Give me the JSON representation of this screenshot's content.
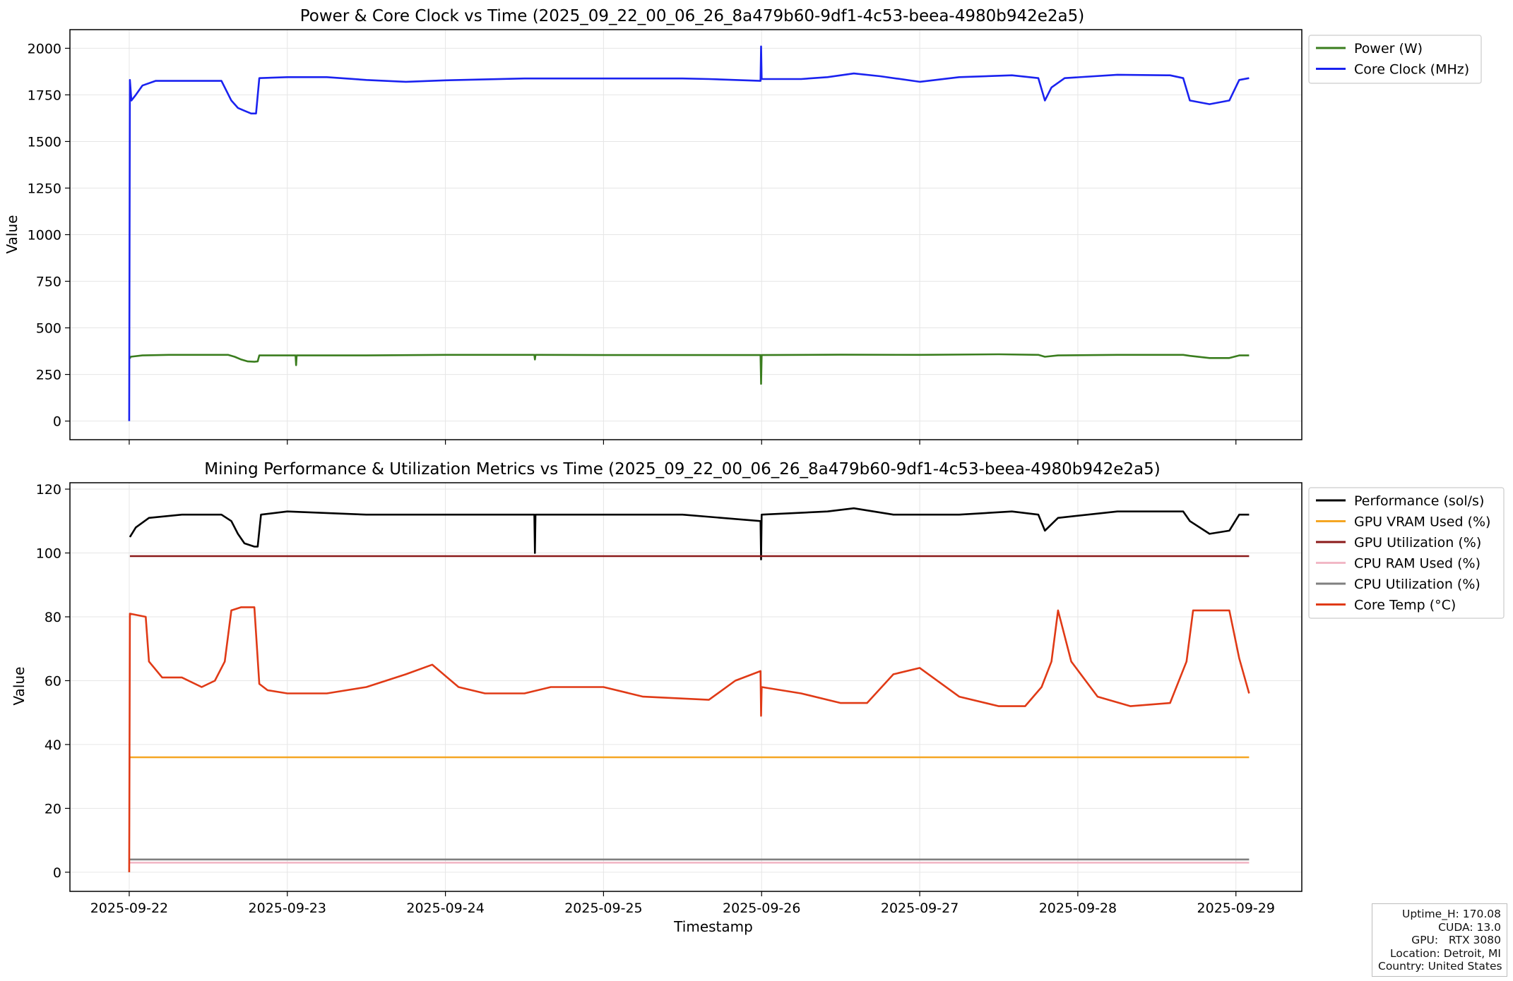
{
  "chart_data": [
    {
      "type": "line",
      "title": "Power & Core Clock vs Time (2025_09_22_00_06_26_8a479b60-9df1-4c53-beea-4980b942e2a5)",
      "xlabel": "",
      "ylabel": "Value",
      "xlim": [
        "2025-09-21T15:00",
        "2025-09-29T10:00"
      ],
      "ylim": [
        -100,
        2100
      ],
      "yticks": [
        0,
        250,
        500,
        750,
        1000,
        1250,
        1500,
        1750,
        2000
      ],
      "grid": true,
      "legend_position": "upper-right-outside",
      "series": [
        {
          "name": "Power (W)",
          "color": "#3a7d1e",
          "x": [
            "2025-09-22T00:06",
            "2025-09-22T00:12",
            "2025-09-22T02:00",
            "2025-09-22T06:00",
            "2025-09-22T12:00",
            "2025-09-22T15:00",
            "2025-09-22T16:00",
            "2025-09-22T17:00",
            "2025-09-22T18:00",
            "2025-09-22T19:00",
            "2025-09-22T19:30",
            "2025-09-22T19:45",
            "2025-09-23T00:00",
            "2025-09-23T01:15",
            "2025-09-23T01:20",
            "2025-09-23T01:25",
            "2025-09-23T12:00",
            "2025-09-24T00:00",
            "2025-09-24T13:30",
            "2025-09-24T13:35",
            "2025-09-24T13:40",
            "2025-09-25T00:00",
            "2025-09-25T12:00",
            "2025-09-25T23:50",
            "2025-09-25T23:55",
            "2025-09-26T00:00",
            "2025-09-26T12:00",
            "2025-09-27T00:00",
            "2025-09-27T12:00",
            "2025-09-27T18:00",
            "2025-09-27T19:00",
            "2025-09-27T21:00",
            "2025-09-28T06:00",
            "2025-09-28T16:00",
            "2025-09-28T17:00",
            "2025-09-28T20:00",
            "2025-09-28T23:00",
            "2025-09-29T00:30",
            "2025-09-29T02:00"
          ],
          "y": [
            335,
            345,
            352,
            355,
            355,
            355,
            345,
            330,
            320,
            318,
            320,
            352,
            352,
            352,
            300,
            352,
            352,
            355,
            355,
            330,
            355,
            354,
            354,
            354,
            200,
            354,
            356,
            355,
            358,
            355,
            345,
            352,
            355,
            355,
            350,
            338,
            338,
            352,
            352
          ]
        },
        {
          "name": "Core Clock (MHz)",
          "color": "#1a22f0",
          "x": [
            "2025-09-22T00:00",
            "2025-09-22T00:06",
            "2025-09-22T00:20",
            "2025-09-22T01:00",
            "2025-09-22T02:00",
            "2025-09-22T04:00",
            "2025-09-22T08:00",
            "2025-09-22T14:00",
            "2025-09-22T15:30",
            "2025-09-22T16:30",
            "2025-09-22T17:30",
            "2025-09-22T18:30",
            "2025-09-22T19:15",
            "2025-09-22T19:45",
            "2025-09-23T00:00",
            "2025-09-23T06:00",
            "2025-09-23T12:00",
            "2025-09-23T18:00",
            "2025-09-24T00:00",
            "2025-09-24T12:00",
            "2025-09-25T00:00",
            "2025-09-25T12:00",
            "2025-09-25T16:00",
            "2025-09-25T23:50",
            "2025-09-25T23:55",
            "2025-09-26T00:00",
            "2025-09-26T06:00",
            "2025-09-26T10:00",
            "2025-09-26T14:00",
            "2025-09-26T18:00",
            "2025-09-27T00:00",
            "2025-09-27T06:00",
            "2025-09-27T14:00",
            "2025-09-27T18:00",
            "2025-09-27T19:00",
            "2025-09-27T20:00",
            "2025-09-27T22:00",
            "2025-09-28T06:00",
            "2025-09-28T14:00",
            "2025-09-28T16:00",
            "2025-09-28T17:00",
            "2025-09-28T20:00",
            "2025-09-28T23:00",
            "2025-09-29T00:30",
            "2025-09-29T02:00"
          ],
          "y": [
            0,
            1830,
            1720,
            1750,
            1800,
            1825,
            1825,
            1825,
            1720,
            1680,
            1665,
            1650,
            1650,
            1840,
            1845,
            1845,
            1830,
            1820,
            1828,
            1838,
            1838,
            1838,
            1835,
            1825,
            2010,
            1835,
            1835,
            1845,
            1865,
            1850,
            1820,
            1845,
            1855,
            1840,
            1720,
            1790,
            1840,
            1858,
            1855,
            1840,
            1720,
            1700,
            1720,
            1830,
            1840
          ]
        }
      ]
    },
    {
      "type": "line",
      "title": "Mining Performance & Utilization Metrics vs Time (2025_09_22_00_06_26_8a479b60-9df1-4c53-beea-4980b942e2a5)",
      "xlabel": "Timestamp",
      "ylabel": "Value",
      "xlim": [
        "2025-09-21T15:00",
        "2025-09-29T10:00"
      ],
      "ylim": [
        -6,
        122
      ],
      "yticks": [
        0,
        20,
        40,
        60,
        80,
        100,
        120
      ],
      "xticks": [
        "2025-09-22",
        "2025-09-23",
        "2025-09-24",
        "2025-09-25",
        "2025-09-26",
        "2025-09-27",
        "2025-09-28",
        "2025-09-29"
      ],
      "grid": true,
      "legend_position": "upper-right-outside",
      "series": [
        {
          "name": "Performance (sol/s)",
          "color": "#000000",
          "x": [
            "2025-09-22T00:06",
            "2025-09-22T01:00",
            "2025-09-22T03:00",
            "2025-09-22T08:00",
            "2025-09-22T14:00",
            "2025-09-22T15:30",
            "2025-09-22T16:30",
            "2025-09-22T17:30",
            "2025-09-22T19:00",
            "2025-09-22T19:30",
            "2025-09-22T20:00",
            "2025-09-23T00:00",
            "2025-09-23T12:00",
            "2025-09-24T00:00",
            "2025-09-24T13:30",
            "2025-09-24T13:35",
            "2025-09-24T13:40",
            "2025-09-25T00:00",
            "2025-09-25T12:00",
            "2025-09-25T23:50",
            "2025-09-25T23:55",
            "2025-09-26T00:00",
            "2025-09-26T10:00",
            "2025-09-26T14:00",
            "2025-09-26T20:00",
            "2025-09-27T06:00",
            "2025-09-27T14:00",
            "2025-09-27T18:00",
            "2025-09-27T19:00",
            "2025-09-27T21:00",
            "2025-09-28T06:00",
            "2025-09-28T16:00",
            "2025-09-28T17:00",
            "2025-09-28T20:00",
            "2025-09-28T23:00",
            "2025-09-29T00:30",
            "2025-09-29T02:00"
          ],
          "y": [
            105,
            108,
            111,
            112,
            112,
            110,
            106,
            103,
            102,
            102,
            112,
            113,
            112,
            112,
            112,
            100,
            112,
            112,
            112,
            110,
            98,
            112,
            113,
            114,
            112,
            112,
            113,
            112,
            107,
            111,
            113,
            113,
            110,
            106,
            107,
            112,
            112
          ]
        },
        {
          "name": "GPU VRAM Used (%)",
          "color": "#f5a623",
          "x": [
            "2025-09-22T00:06",
            "2025-09-29T02:00"
          ],
          "y": [
            36,
            36
          ]
        },
        {
          "name": "GPU Utilization (%)",
          "color": "#8b1a1a",
          "x": [
            "2025-09-22T00:06",
            "2025-09-29T02:00"
          ],
          "y": [
            99,
            99
          ]
        },
        {
          "name": "CPU RAM Used (%)",
          "color": "#f2b8c6",
          "x": [
            "2025-09-22T00:06",
            "2025-09-29T02:00"
          ],
          "y": [
            3,
            3
          ]
        },
        {
          "name": "CPU Utilization (%)",
          "color": "#7f7f7f",
          "x": [
            "2025-09-22T00:06",
            "2025-09-29T02:00"
          ],
          "y": [
            4,
            4
          ]
        },
        {
          "name": "Core Temp (°C)",
          "color": "#e03a16",
          "x": [
            "2025-09-22T00:00",
            "2025-09-22T00:06",
            "2025-09-22T02:30",
            "2025-09-22T03:00",
            "2025-09-22T05:00",
            "2025-09-22T08:00",
            "2025-09-22T11:00",
            "2025-09-22T13:00",
            "2025-09-22T14:30",
            "2025-09-22T15:30",
            "2025-09-22T17:00",
            "2025-09-22T19:00",
            "2025-09-22T19:45",
            "2025-09-22T21:00",
            "2025-09-23T00:00",
            "2025-09-23T06:00",
            "2025-09-23T12:00",
            "2025-09-23T18:00",
            "2025-09-23T22:00",
            "2025-09-24T02:00",
            "2025-09-24T06:00",
            "2025-09-24T12:00",
            "2025-09-24T16:00",
            "2025-09-25T00:00",
            "2025-09-25T06:00",
            "2025-09-25T16:00",
            "2025-09-25T20:00",
            "2025-09-25T23:50",
            "2025-09-25T23:55",
            "2025-09-26T00:00",
            "2025-09-26T06:00",
            "2025-09-26T12:00",
            "2025-09-26T16:00",
            "2025-09-26T20:00",
            "2025-09-27T00:00",
            "2025-09-27T06:00",
            "2025-09-27T12:00",
            "2025-09-27T16:00",
            "2025-09-27T18:30",
            "2025-09-27T20:00",
            "2025-09-27T21:00",
            "2025-09-27T23:00",
            "2025-09-28T03:00",
            "2025-09-28T08:00",
            "2025-09-28T14:00",
            "2025-09-28T16:30",
            "2025-09-28T17:30",
            "2025-09-28T20:00",
            "2025-09-28T23:00",
            "2025-09-29T00:30",
            "2025-09-29T02:00"
          ],
          "y": [
            0,
            81,
            80,
            66,
            61,
            61,
            58,
            60,
            66,
            82,
            83,
            83,
            59,
            57,
            56,
            56,
            58,
            62,
            65,
            58,
            56,
            56,
            58,
            58,
            55,
            54,
            60,
            63,
            49,
            58,
            56,
            53,
            53,
            62,
            64,
            55,
            52,
            52,
            58,
            66,
            82,
            66,
            55,
            52,
            53,
            66,
            82,
            82,
            82,
            67,
            56
          ]
        }
      ]
    }
  ],
  "info": {
    "uptime": "Uptime_H: 170.08",
    "cuda": "CUDA: 13.0",
    "gpu": "GPU:   RTX 3080",
    "location": "Location: Detroit, MI",
    "country": "Country: United States"
  }
}
